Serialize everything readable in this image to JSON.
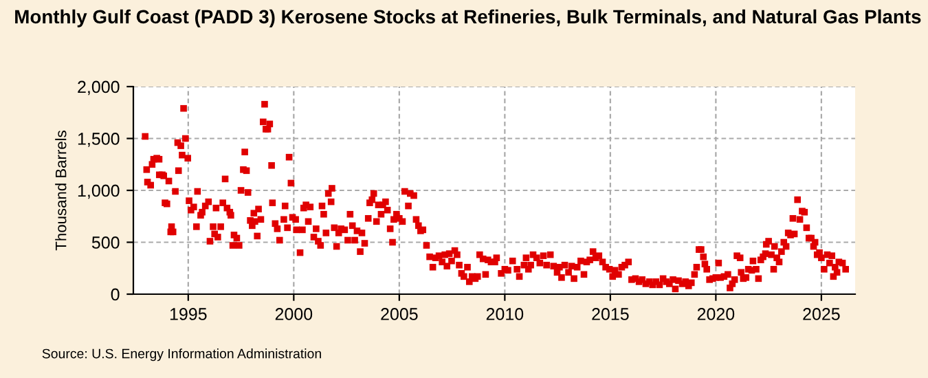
{
  "chart_data": {
    "type": "scatter",
    "title": "Monthly Gulf Coast (PADD 3) Kerosene Stocks at Refineries, Bulk Terminals, and Natural Gas Plants",
    "ylabel": "Thousand Barrels",
    "annotations": [
      "Source: U.S. Energy Information Administration"
    ],
    "x": [
      1992.96,
      1993.03,
      1993.07,
      1993.22,
      1993.29,
      1993.36,
      1993.51,
      1993.62,
      1993.63,
      1993.77,
      1993.84,
      1993.9,
      1993.99,
      1994.08,
      1994.17,
      1994.21,
      1994.28,
      1994.39,
      1994.5,
      1994.54,
      1994.65,
      1994.71,
      1994.78,
      1994.87,
      1994.98,
      1995.04,
      1995.13,
      1995.26,
      1995.39,
      1995.44,
      1995.59,
      1995.66,
      1995.81,
      1995.96,
      1996.03,
      1996.18,
      1996.25,
      1996.32,
      1996.4,
      1996.54,
      1996.64,
      1996.75,
      1996.84,
      1996.97,
      1997.02,
      1997.11,
      1997.17,
      1997.3,
      1997.41,
      1997.5,
      1997.61,
      1997.68,
      1997.76,
      1997.83,
      1997.94,
      1998.03,
      1998.11,
      1998.16,
      1998.27,
      1998.33,
      1998.44,
      1998.55,
      1998.62,
      1998.68,
      1998.77,
      1998.86,
      1998.95,
      1998.99,
      1999.12,
      1999.22,
      1999.33,
      1999.53,
      1999.59,
      1999.7,
      1999.78,
      1999.87,
      1999.94,
      2000.09,
      2000.13,
      2000.3,
      2000.41,
      2000.47,
      2000.58,
      2000.69,
      2000.78,
      2000.95,
      2001.06,
      2001.16,
      2001.27,
      2001.34,
      2001.42,
      2001.53,
      2001.64,
      2001.77,
      2001.81,
      2001.92,
      2002.03,
      2002.13,
      2002.24,
      2002.41,
      2002.56,
      2002.67,
      2002.78,
      2002.89,
      2003.0,
      2003.15,
      2003.23,
      2003.36,
      2003.53,
      2003.6,
      2003.71,
      2003.79,
      2003.92,
      2004.01,
      2004.14,
      2004.22,
      2004.35,
      2004.44,
      2004.57,
      2004.68,
      2004.74,
      2004.87,
      2005.0,
      2005.15,
      2005.26,
      2005.43,
      2005.52,
      2005.69,
      2005.8,
      2005.91,
      2006.01,
      2006.12,
      2006.29,
      2006.44,
      2006.59,
      2006.72,
      2006.88,
      2007.03,
      2007.16,
      2007.26,
      2007.37,
      2007.48,
      2007.63,
      2007.74,
      2007.84,
      2007.95,
      2008.06,
      2008.23,
      2008.32,
      2008.45,
      2008.6,
      2008.71,
      2008.81,
      2008.97,
      2009.09,
      2009.2,
      2009.35,
      2009.53,
      2009.61,
      2009.83,
      2010.0,
      2010.15,
      2010.37,
      2010.58,
      2010.69,
      2010.91,
      2011.01,
      2011.12,
      2011.23,
      2011.34,
      2011.51,
      2011.66,
      2011.83,
      2011.98,
      2012.16,
      2012.31,
      2012.48,
      2012.59,
      2012.69,
      2012.84,
      2013.02,
      2013.17,
      2013.28,
      2013.43,
      2013.6,
      2013.75,
      2013.88,
      2014.03,
      2014.18,
      2014.31,
      2014.46,
      2014.63,
      2014.78,
      2014.96,
      2015.11,
      2015.22,
      2015.39,
      2015.54,
      2015.69,
      2015.86,
      2016.01,
      2016.19,
      2016.36,
      2016.51,
      2016.68,
      2016.85,
      2017.0,
      2017.16,
      2017.33,
      2017.5,
      2017.65,
      2017.8,
      2017.97,
      2018.08,
      2018.23,
      2018.41,
      2018.56,
      2018.71,
      2018.84,
      2018.99,
      2019.09,
      2019.2,
      2019.3,
      2019.41,
      2019.48,
      2019.57,
      2019.7,
      2019.85,
      2020.0,
      2020.13,
      2020.22,
      2020.39,
      2020.57,
      2020.67,
      2020.78,
      2020.89,
      2021.0,
      2021.15,
      2021.2,
      2021.3,
      2021.43,
      2021.54,
      2021.7,
      2021.76,
      2021.91,
      2022.02,
      2022.13,
      2022.24,
      2022.35,
      2022.39,
      2022.5,
      2022.63,
      2022.74,
      2022.78,
      2022.89,
      2023.0,
      2023.11,
      2023.22,
      2023.33,
      2023.43,
      2023.54,
      2023.65,
      2023.72,
      2023.87,
      2023.98,
      2024.09,
      2024.2,
      2024.3,
      2024.41,
      2024.52,
      2024.63,
      2024.7,
      2024.8,
      2024.91,
      2025.0,
      2025.13,
      2025.28,
      2025.39,
      2025.5,
      2025.57,
      2025.65,
      2025.74,
      2025.83,
      2026.0,
      2026.15
    ],
    "series": [
      {
        "color": "#e00000",
        "values": [
          1520,
          1200,
          1080,
          1050,
          1250,
          1300,
          1310,
          1300,
          1150,
          1150,
          1140,
          880,
          870,
          1090,
          600,
          650,
          600,
          990,
          1460,
          1190,
          1430,
          1340,
          1790,
          1500,
          1310,
          900,
          810,
          840,
          650,
          990,
          760,
          790,
          850,
          890,
          510,
          650,
          580,
          830,
          550,
          650,
          880,
          1110,
          830,
          790,
          760,
          470,
          570,
          540,
          470,
          1000,
          1200,
          1370,
          1190,
          980,
          710,
          660,
          780,
          700,
          560,
          820,
          720,
          1660,
          1830,
          1590,
          1590,
          1640,
          1240,
          880,
          680,
          630,
          520,
          720,
          850,
          640,
          1320,
          1070,
          740,
          720,
          620,
          400,
          620,
          830,
          860,
          700,
          840,
          550,
          630,
          510,
          470,
          850,
          770,
          590,
          970,
          890,
          1020,
          640,
          460,
          590,
          630,
          620,
          520,
          770,
          660,
          520,
          610,
          410,
          590,
          490,
          730,
          880,
          910,
          970,
          700,
          860,
          770,
          860,
          890,
          810,
          630,
          500,
          720,
          770,
          730,
          700,
          990,
          850,
          970,
          950,
          720,
          660,
          610,
          620,
          470,
          360,
          260,
          350,
          370,
          310,
          380,
          270,
          390,
          320,
          420,
          380,
          280,
          200,
          170,
          260,
          120,
          170,
          150,
          170,
          380,
          340,
          190,
          330,
          310,
          310,
          350,
          200,
          240,
          230,
          320,
          240,
          170,
          280,
          350,
          240,
          280,
          380,
          350,
          300,
          370,
          280,
          380,
          270,
          210,
          260,
          160,
          280,
          210,
          270,
          150,
          260,
          320,
          190,
          310,
          330,
          410,
          350,
          370,
          310,
          260,
          240,
          170,
          230,
          190,
          260,
          280,
          310,
          140,
          150,
          120,
          140,
          100,
          120,
          90,
          120,
          90,
          150,
          120,
          100,
          140,
          50,
          130,
          100,
          120,
          80,
          110,
          190,
          260,
          430,
          430,
          360,
          290,
          240,
          140,
          150,
          160,
          300,
          160,
          170,
          190,
          60,
          100,
          140,
          370,
          350,
          210,
          150,
          160,
          240,
          230,
          320,
          240,
          150,
          330,
          360,
          390,
          480,
          510,
          380,
          240,
          460,
          350,
          310,
          410,
          500,
          460,
          590,
          570,
          730,
          580,
          910,
          720,
          800,
          790,
          640,
          540,
          540,
          460,
          500,
          380,
          400,
          350,
          240,
          380,
          300,
          370,
          170,
          260,
          210,
          310,
          300,
          240
        ]
      }
    ],
    "xlim": [
      1992.4,
      2026.6
    ],
    "xticks": [
      1995,
      2000,
      2005,
      2010,
      2015,
      2020,
      2025
    ],
    "ylim": [
      0,
      2000
    ],
    "yticks": [
      0,
      {
        "value": 500,
        "label": "500"
      },
      {
        "value": 1000,
        "label": "1,000"
      },
      {
        "value": 1500,
        "label": "1,500"
      },
      {
        "value": 2000,
        "label": "2,000"
      }
    ],
    "grid": true,
    "marker": "square"
  }
}
